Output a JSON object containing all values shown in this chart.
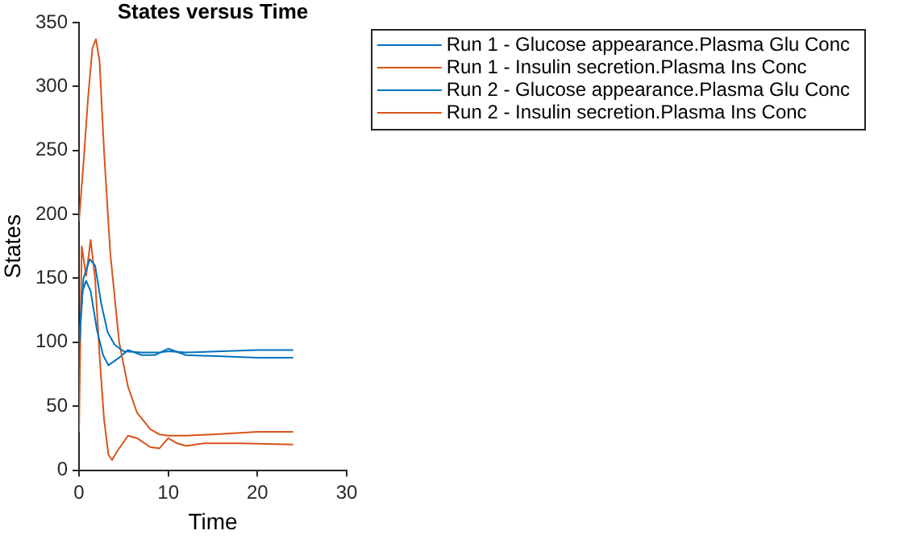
{
  "chart_data": {
    "type": "line",
    "title": "States versus Time",
    "xlabel": "Time",
    "ylabel": "States",
    "xlim": [
      0,
      30
    ],
    "xticks": [
      0,
      10,
      20,
      30
    ],
    "ylim": [
      0,
      350
    ],
    "yticks": [
      0,
      50,
      100,
      150,
      200,
      250,
      300,
      350
    ],
    "grid": false,
    "legend": "top right",
    "marker": "none",
    "line_style": "solid",
    "series": [
      {
        "name": "Run 1 - Glucose appearance.Plasma Glu Conc",
        "color": "#0072bd",
        "x": [
          0,
          0.5,
          1.2,
          1.8,
          2.5,
          3.2,
          4,
          5,
          7,
          9,
          10,
          12,
          16,
          20,
          24
        ],
        "values": [
          95,
          150,
          165,
          160,
          130,
          108,
          98,
          93,
          92,
          92,
          93,
          92,
          93,
          94,
          94
        ]
      },
      {
        "name": "Run 1 - Insulin secretion.Plasma Ins Conc",
        "color": "#d95319",
        "x": [
          0,
          0.5,
          1,
          1.5,
          1.9,
          2.3,
          2.8,
          3.5,
          4.5,
          5.5,
          6.5,
          8,
          9,
          10,
          12,
          15,
          20,
          24
        ],
        "values": [
          195,
          240,
          290,
          330,
          337,
          320,
          250,
          170,
          100,
          65,
          45,
          32,
          28,
          27,
          27,
          28,
          30,
          30
        ]
      },
      {
        "name": "Run 2 - Glucose appearance.Plasma Glu Conc",
        "color": "#0072bd",
        "x": [
          0,
          0.4,
          0.8,
          1.3,
          2,
          2.7,
          3.3,
          4.5,
          5.5,
          7,
          8.5,
          10,
          12,
          16,
          20,
          24
        ],
        "values": [
          100,
          140,
          148,
          140,
          110,
          90,
          82,
          88,
          94,
          90,
          90,
          95,
          90,
          89,
          88,
          88
        ]
      },
      {
        "name": "Run 2 - Insulin secretion.Plasma Ins Conc",
        "color": "#d95319",
        "x": [
          0,
          0.3,
          0.8,
          1.3,
          1.8,
          2.3,
          2.8,
          3.3,
          3.7,
          4.3,
          5.5,
          6.5,
          8,
          9,
          10,
          11,
          12,
          14,
          18,
          24
        ],
        "values": [
          30,
          175,
          152,
          180,
          150,
          90,
          40,
          12,
          8,
          15,
          27,
          25,
          18,
          17,
          25,
          21,
          19,
          21,
          21,
          20
        ]
      }
    ]
  }
}
